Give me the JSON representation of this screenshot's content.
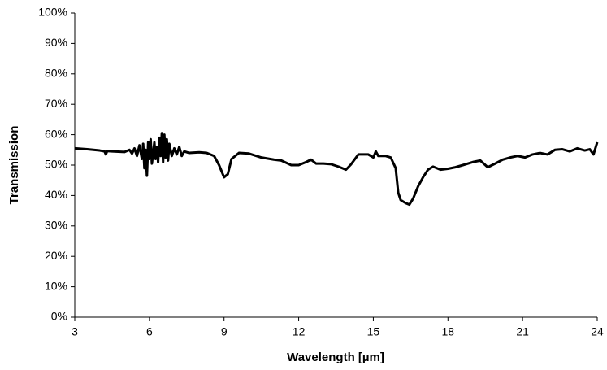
{
  "chart_data": {
    "type": "line",
    "x_label": "Wavelength [µm]",
    "y_label": "Transmission",
    "color": "#000000",
    "grid": false,
    "xlim": [
      3,
      24
    ],
    "xticks": [
      3,
      6,
      9,
      12,
      15,
      18,
      21,
      24
    ],
    "ylim": [
      0,
      100
    ],
    "yticks": [
      {
        "value": 0,
        "label": "0%"
      },
      {
        "value": 10,
        "label": "10%"
      },
      {
        "value": 20,
        "label": "20%"
      },
      {
        "value": 30,
        "label": "30%"
      },
      {
        "value": 40,
        "label": "40%"
      },
      {
        "value": 50,
        "label": "50%"
      },
      {
        "value": 60,
        "label": "60%"
      },
      {
        "value": 70,
        "label": "70%"
      },
      {
        "value": 80,
        "label": "80%"
      },
      {
        "value": 90,
        "label": "90%"
      },
      {
        "value": 100,
        "label": "100%"
      }
    ],
    "x": [
      3,
      3.5,
      4,
      4.2,
      4.25,
      4.3,
      4.5,
      5,
      5.2,
      5.3,
      5.4,
      5.5,
      5.6,
      5.7,
      5.75,
      5.8,
      5.85,
      5.9,
      5.95,
      6.0,
      6.05,
      6.1,
      6.2,
      6.25,
      6.3,
      6.35,
      6.4,
      6.45,
      6.5,
      6.55,
      6.6,
      6.65,
      6.7,
      6.75,
      6.8,
      6.9,
      7.0,
      7.1,
      7.2,
      7.3,
      7.4,
      7.6,
      8.0,
      8.3,
      8.6,
      8.8,
      9.0,
      9.15,
      9.3,
      9.6,
      10,
      10.5,
      11,
      11.3,
      11.7,
      12,
      12.3,
      12.5,
      12.7,
      13,
      13.3,
      13.6,
      13.9,
      14.1,
      14.4,
      14.8,
      15,
      15.1,
      15.2,
      15.5,
      15.7,
      15.9,
      16.0,
      16.1,
      16.3,
      16.45,
      16.6,
      16.8,
      17,
      17.2,
      17.4,
      17.7,
      18,
      18.3,
      18.6,
      19,
      19.3,
      19.6,
      19.9,
      20.2,
      20.5,
      20.8,
      21.1,
      21.4,
      21.7,
      22,
      22.3,
      22.6,
      22.9,
      23.2,
      23.5,
      23.7,
      23.85,
      24
    ],
    "values": [
      55.5,
      55.2,
      54.8,
      54.5,
      53.5,
      54.6,
      54.5,
      54.3,
      55,
      53.8,
      55.5,
      53,
      56.5,
      52,
      57,
      49,
      55,
      46.5,
      57.5,
      52,
      58.5,
      50.5,
      57.5,
      52,
      56,
      51,
      59,
      53,
      60.5,
      51,
      60,
      52.5,
      58.5,
      51.5,
      57,
      53,
      55.5,
      53.5,
      56,
      53,
      54.5,
      54,
      54.2,
      54,
      53,
      50,
      46,
      47,
      52,
      54,
      53.8,
      52.5,
      51.8,
      51.5,
      50,
      50,
      51,
      51.8,
      50.5,
      50.5,
      50.3,
      49.5,
      48.5,
      50.2,
      53.5,
      53.5,
      52.5,
      54.5,
      53,
      53,
      52.5,
      49,
      41,
      38.5,
      37.5,
      37,
      39,
      43,
      46,
      48.5,
      49.5,
      48.5,
      48.8,
      49.3,
      50,
      51,
      51.5,
      49.3,
      50.5,
      51.8,
      52.5,
      53,
      52.5,
      53.5,
      54,
      53.5,
      55,
      55.2,
      54.5,
      55.5,
      54.8,
      55.2,
      53.5,
      57.5
    ]
  }
}
